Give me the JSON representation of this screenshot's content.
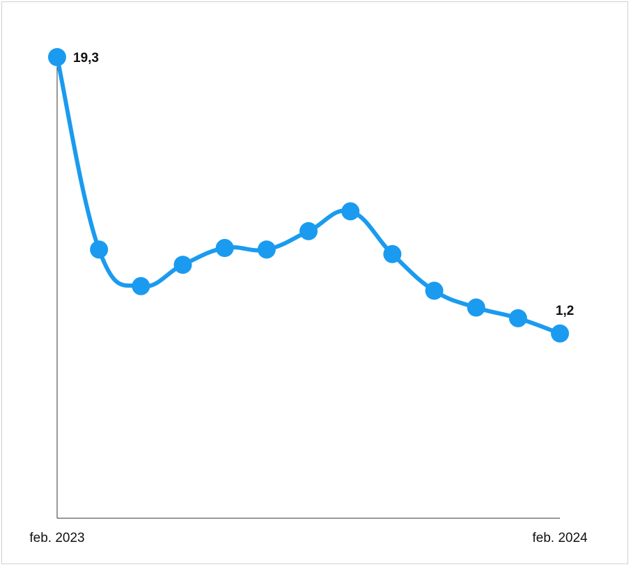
{
  "chart_data": {
    "type": "line",
    "x_tick_labels": [
      "feb. 2023",
      "feb. 2024"
    ],
    "values": [
      19.3,
      6.7,
      4.3,
      5.7,
      6.8,
      6.7,
      7.9,
      9.2,
      6.4,
      4.0,
      2.9,
      2.2,
      1.2
    ],
    "point_labels": [
      {
        "index": 0,
        "text": "19,3"
      },
      {
        "index": 12,
        "text": "1,2"
      }
    ],
    "ylim": [
      -10.9,
      19.3
    ],
    "grid": false,
    "legend": "none",
    "colors": {
      "series": "#1A9BEF",
      "axis": "#333333"
    }
  }
}
